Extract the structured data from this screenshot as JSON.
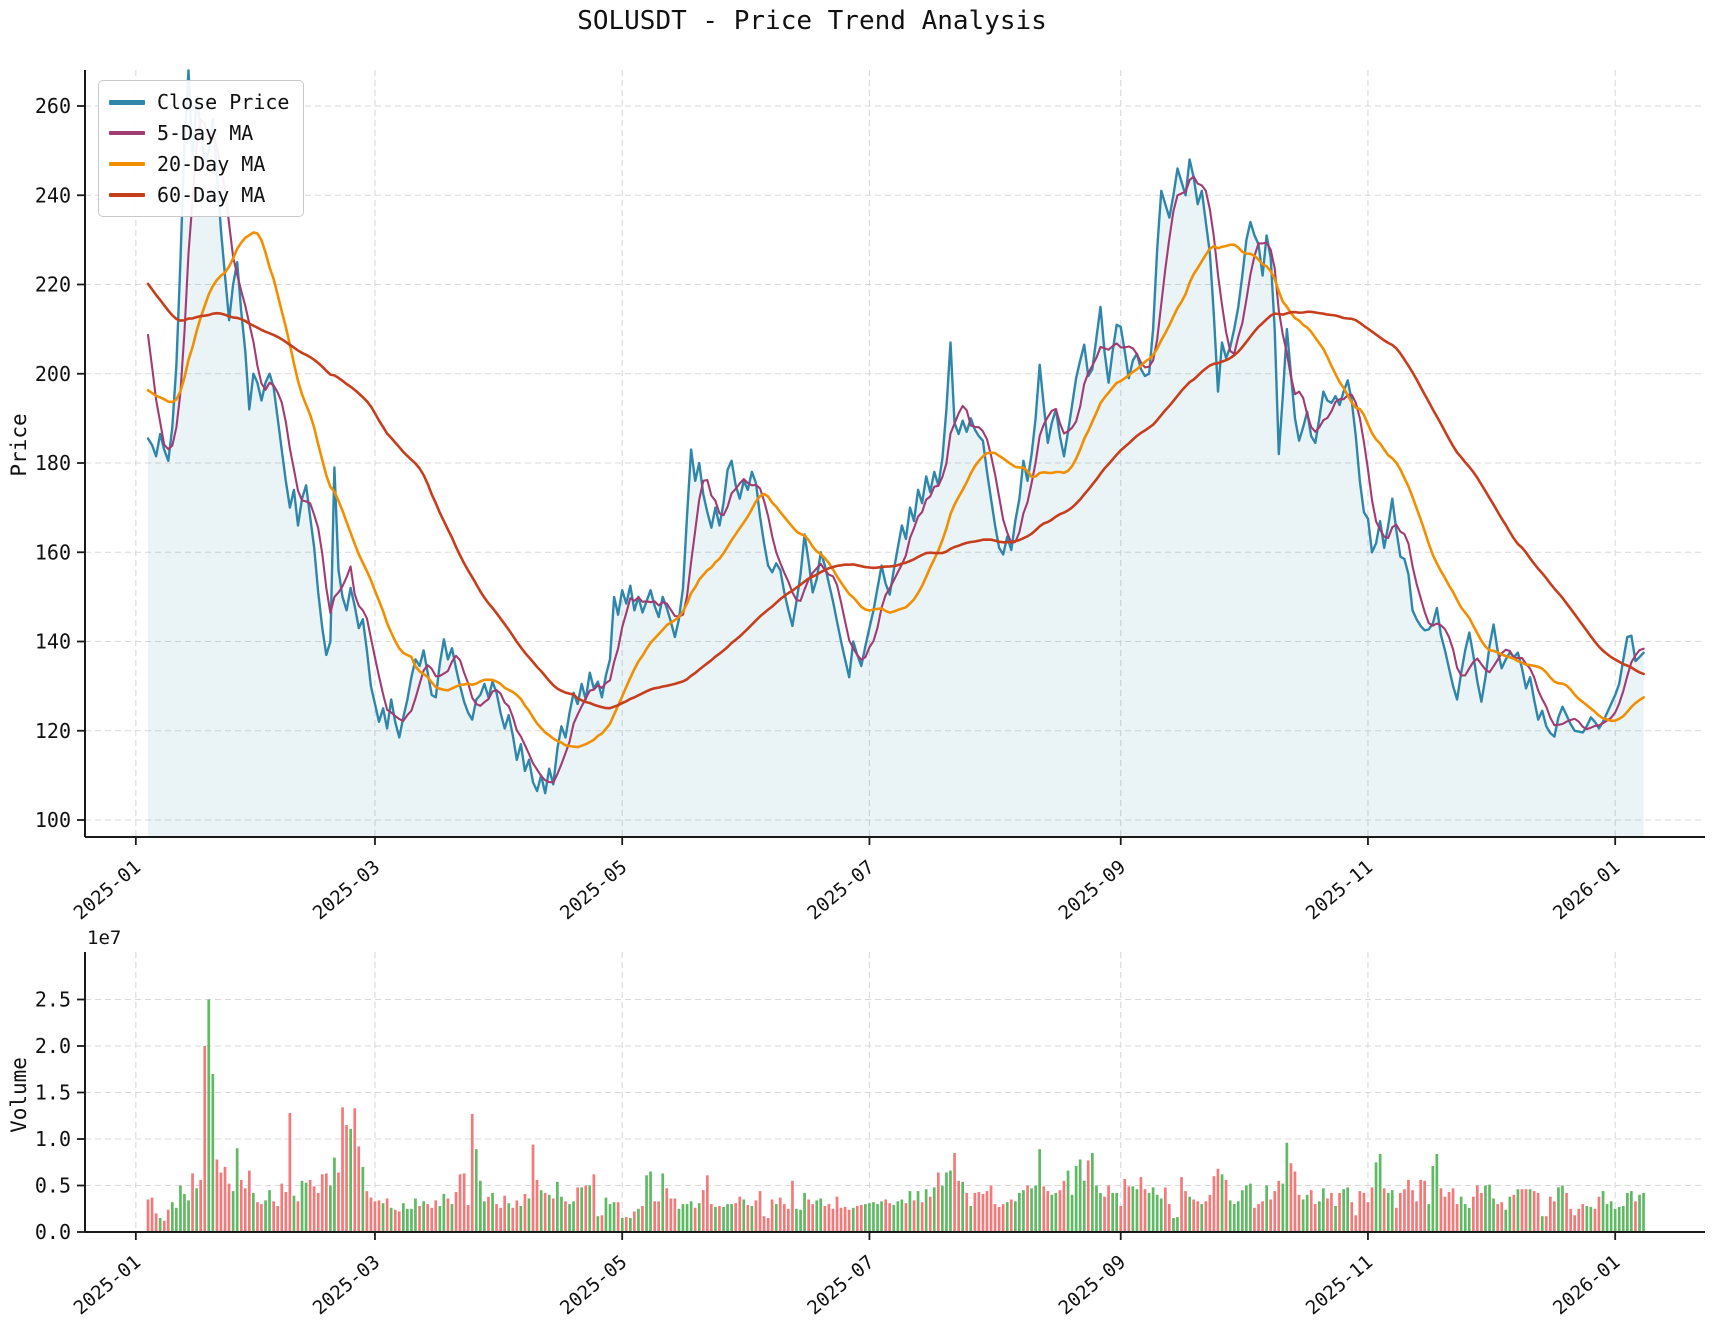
{
  "title": "SOLUSDT - Price Trend Analysis",
  "legend": {
    "items": [
      {
        "label": "Close Price",
        "color": "#2E86AB"
      },
      {
        "label": "5-Day MA",
        "color": "#A23B72"
      },
      {
        "label": "20-Day MA",
        "color": "#F18F01"
      },
      {
        "label": "60-Day MA",
        "color": "#C73E1D"
      }
    ]
  },
  "axes": {
    "price": {
      "label": "Price",
      "ticks": [
        100,
        120,
        140,
        160,
        180,
        200,
        220,
        240,
        260
      ]
    },
    "volume": {
      "label": "Volume",
      "ticks": [
        "0.0",
        "0.5",
        "1.0",
        "1.5",
        "2.0",
        "2.5"
      ],
      "offset_label": "1e7"
    },
    "x": {
      "tick_labels": [
        "2025-01",
        "2025-03",
        "2025-05",
        "2025-07",
        "2025-09",
        "2025-11",
        "2026-01"
      ],
      "tick_days": [
        -3,
        56,
        117,
        178,
        240,
        301,
        362
      ]
    }
  },
  "chart_data": [
    {
      "type": "line",
      "title": "SOLUSDT - Price Trend Analysis",
      "ylabel": "Price",
      "x_start_date": "2025-01-04",
      "x_days": 370,
      "ylim": [
        95,
        270
      ],
      "grid": true,
      "legend_position": "upper-left",
      "area_fill_under_close": true,
      "series": [
        {
          "name": "Close Price",
          "color": "#2E86AB",
          "values": [
            185.5,
            184,
            181.5,
            186.5,
            183,
            180.5,
            188,
            202,
            225,
            252,
            268,
            248,
            262,
            255,
            247,
            250,
            257,
            245,
            232,
            222,
            212,
            220,
            225,
            214,
            205,
            192,
            200,
            198,
            194,
            198,
            200,
            197,
            190,
            183,
            176,
            170,
            174,
            166,
            172,
            175,
            168,
            161,
            151,
            143,
            137,
            140,
            179,
            156,
            150,
            147,
            152,
            148,
            143,
            145,
            138,
            130,
            126,
            122,
            125,
            120.5,
            127,
            122,
            118.5,
            123,
            127,
            132,
            136,
            134.5,
            138,
            133,
            128,
            127.5,
            135,
            140.5,
            136,
            138.5,
            134,
            130,
            126.5,
            124,
            122.5,
            127,
            128,
            130.5,
            127.5,
            131,
            128.5,
            124,
            120.5,
            123.5,
            119,
            113.5,
            117,
            111,
            113.5,
            108.5,
            106.5,
            110,
            106,
            111.5,
            108,
            116,
            121,
            118.5,
            124,
            128.5,
            126,
            130.5,
            127,
            133,
            129.5,
            131,
            127.5,
            132.5,
            136,
            150,
            146,
            151.5,
            148.5,
            152.5,
            147,
            150,
            146.5,
            149,
            151.5,
            148,
            145.5,
            150,
            147.5,
            144.5,
            141,
            145,
            152,
            168,
            183,
            176,
            180,
            173,
            169,
            165.5,
            170,
            166,
            171,
            178.5,
            180.5,
            175,
            172,
            176,
            174,
            178,
            175.5,
            168,
            162,
            157,
            155.5,
            157.5,
            156,
            151,
            147,
            143.5,
            149,
            155,
            164,
            158,
            151,
            154,
            160,
            157,
            153,
            149,
            144.5,
            140,
            136,
            132,
            140,
            137,
            134.5,
            139,
            143,
            147,
            152,
            157,
            153,
            150.5,
            156,
            161,
            166,
            163,
            170,
            167,
            174,
            171,
            177,
            173.5,
            178,
            175,
            181,
            192,
            207,
            189,
            186.5,
            189.5,
            187,
            190,
            187.5,
            186,
            185,
            178,
            172,
            166,
            161,
            159.5,
            163.5,
            160.5,
            167,
            172,
            180.5,
            176,
            182,
            190,
            202,
            193,
            184.5,
            189,
            192,
            186,
            181.5,
            187,
            193,
            199,
            203,
            206.5,
            199.5,
            201,
            208,
            215,
            205,
            198,
            205,
            211,
            210.5,
            205,
            199,
            203,
            204.5,
            201,
            199.5,
            200,
            210,
            228,
            241,
            238,
            235,
            240,
            246,
            243,
            240,
            248,
            244,
            238,
            241,
            234,
            227,
            213,
            196,
            207,
            203.5,
            206,
            210,
            215,
            222,
            230,
            234,
            231,
            229,
            222,
            231,
            226,
            210,
            182,
            195,
            210,
            200,
            190,
            185,
            188,
            191.5,
            186,
            184.5,
            190,
            196,
            194,
            193.5,
            195,
            193,
            196,
            198.5,
            194,
            186,
            176,
            169,
            167.5,
            160,
            162,
            167,
            161,
            166,
            172,
            165,
            159,
            158.5,
            155,
            147,
            145,
            143.5,
            142.5,
            142.7,
            144,
            147.5,
            141.5,
            138,
            134,
            130,
            127,
            133,
            138,
            142,
            137,
            131,
            126.5,
            132,
            139,
            143.8,
            138,
            134,
            136,
            137.5,
            136.5,
            137.5,
            134,
            129.5,
            132,
            127,
            122.5,
            124.5,
            121,
            119.5,
            118.7,
            123,
            125.4,
            123.5,
            121.5,
            120,
            119.8,
            119.6,
            121,
            123,
            122,
            120.5,
            122,
            124,
            126,
            128,
            130.5,
            136,
            141,
            141.3,
            135.6,
            136.5,
            137.5
          ]
        },
        {
          "name": "5-Day MA",
          "color": "#A23B72",
          "window": 5,
          "derived_from_close": true
        },
        {
          "name": "20-Day MA",
          "color": "#F18F01",
          "window": 20,
          "derived_from_close": true
        },
        {
          "name": "60-Day MA",
          "color": "#C73E1D",
          "window": 60,
          "derived_from_close": true
        }
      ],
      "prior_close_anchors_for_ma_warmup": [
        [
          -61,
          260
        ],
        [
          -50,
          246
        ],
        [
          -40,
          235
        ],
        [
          -30,
          221
        ],
        [
          -22,
          204
        ],
        [
          -18,
          194
        ],
        [
          -14,
          190
        ],
        [
          -10,
          189
        ],
        [
          -7,
          193
        ],
        [
          -5,
          198
        ],
        [
          -4,
          220
        ],
        [
          -3,
          218
        ],
        [
          -2,
          212
        ],
        [
          -1,
          208
        ]
      ]
    },
    {
      "type": "bar",
      "ylabel": "Volume",
      "scale_label": "1e7",
      "unit": 1000000,
      "ylim_e7": [
        0,
        2.5
      ],
      "up_color": "#5FBA63",
      "down_color": "#F47A7A",
      "color_rule": "green if close >= previous close else red",
      "values_e6": [
        3.5,
        3.7,
        2.0,
        1.5,
        1.2,
        2.4,
        3.2,
        2.6,
        5.0,
        4.1,
        3.4,
        6.3,
        4.7,
        5.6,
        20.0,
        25.0,
        17.0,
        7.8,
        6.4,
        7.0,
        5.2,
        4.4,
        9.0,
        5.6,
        4.7,
        6.6,
        4.2,
        3.2,
        3.0,
        3.4,
        4.5,
        3.3,
        2.8,
        5.2,
        4.3,
        12.8,
        3.9,
        3.3,
        5.5,
        5.3,
        5.6,
        4.9,
        4.2,
        6.2,
        6.3,
        5.0,
        8.0,
        6.4,
        13.4,
        11.5,
        11.1,
        13.3,
        9.2,
        7.0,
        4.4,
        3.7,
        3.3,
        3.4,
        3.1,
        3.6,
        2.6,
        2.4,
        2.2,
        3.1,
        2.5,
        2.5,
        3.6,
        2.8,
        3.3,
        3.0,
        2.6,
        3.4,
        2.8,
        4.1,
        3.6,
        3.0,
        4.3,
        6.2,
        6.3,
        2.9,
        12.7,
        8.9,
        5.5,
        3.3,
        3.8,
        4.2,
        3.0,
        2.6,
        3.9,
        3.1,
        2.6,
        3.4,
        2.8,
        4.1,
        3.6,
        9.4,
        5.6,
        4.5,
        4.2,
        4.0,
        3.6,
        5.4,
        3.8,
        3.3,
        3.0,
        3.3,
        4.8,
        4.8,
        5.0,
        5.0,
        6.2,
        1.7,
        1.8,
        3.7,
        3.0,
        3.2,
        3.2,
        1.5,
        1.6,
        1.5,
        2.2,
        2.5,
        2.8,
        6.1,
        6.5,
        3.3,
        3.3,
        6.3,
        4.7,
        3.6,
        3.6,
        2.5,
        3.0,
        3.0,
        3.3,
        2.6,
        3.1,
        4.5,
        6.1,
        3.0,
        2.7,
        2.8,
        2.7,
        3.0,
        3.0,
        3.1,
        3.8,
        3.5,
        2.9,
        2.8,
        3.4,
        4.4,
        1.7,
        1.5,
        3.5,
        3.0,
        3.7,
        3.0,
        2.5,
        5.5,
        2.5,
        2.4,
        4.2,
        3.5,
        3.0,
        3.4,
        3.6,
        2.8,
        3.0,
        2.5,
        3.8,
        2.6,
        2.7,
        2.4,
        2.6,
        2.8,
        2.9,
        3.0,
        3.1,
        3.2,
        3.0,
        3.3,
        3.5,
        3.1,
        2.9,
        3.3,
        3.5,
        3.1,
        4.4,
        3.4,
        4.4,
        3.2,
        4.6,
        3.8,
        4.8,
        6.4,
        5.0,
        6.4,
        6.6,
        8.5,
        5.5,
        5.4,
        4.2,
        2.8,
        4.2,
        4.3,
        4.1,
        4.4,
        5.0,
        3.0,
        2.7,
        3.0,
        3.2,
        3.5,
        3.3,
        4.2,
        4.5,
        5.0,
        4.7,
        5.0,
        8.9,
        4.9,
        4.4,
        4.0,
        4.2,
        4.5,
        5.5,
        6.6,
        4.0,
        7.1,
        7.8,
        5.5,
        7.7,
        8.5,
        5.0,
        4.2,
        3.8,
        5.0,
        4.2,
        4.2,
        2.8,
        5.7,
        4.9,
        4.9,
        4.6,
        5.9,
        4.6,
        4.2,
        4.8,
        4.0,
        3.6,
        4.8,
        3.0,
        1.5,
        1.6,
        5.9,
        4.4,
        3.8,
        3.5,
        3.3,
        3.0,
        3.3,
        4.0,
        6.0,
        6.8,
        6.2,
        5.6,
        3.4,
        3.0,
        3.3,
        4.5,
        5.0,
        5.2,
        2.6,
        3.0,
        3.3,
        5.0,
        3.5,
        4.4,
        5.5,
        5.2,
        9.6,
        7.4,
        6.5,
        4.0,
        3.5,
        4.0,
        4.5,
        3.0,
        3.3,
        4.7,
        3.6,
        4.2,
        2.8,
        4.2,
        4.6,
        4.8,
        3.2,
        1.8,
        4.4,
        4.2,
        3.2,
        4.8,
        7.5,
        8.4,
        4.7,
        4.2,
        4.5,
        2.6,
        4.2,
        4.6,
        5.6,
        4.5,
        3.3,
        5.6,
        5.5,
        3.0,
        7.1,
        8.4,
        4.7,
        3.8,
        4.3,
        4.7,
        3.0,
        3.8,
        3.0,
        2.6,
        3.8,
        5.0,
        4.2,
        5.0,
        5.1,
        3.6,
        3.0,
        3.2,
        2.4,
        3.8,
        4.0,
        4.6,
        4.6,
        4.6,
        4.6,
        4.4,
        4.2,
        1.7,
        1.7,
        3.8,
        3.3,
        4.8,
        5.0,
        4.2,
        2.5,
        1.8,
        2.5,
        3.0,
        2.8,
        2.7,
        2.5,
        3.8,
        4.4,
        3.0,
        3.3,
        2.5,
        2.7,
        2.8,
        4.2,
        4.4,
        3.3,
        4.0,
        4.2
      ]
    }
  ],
  "style": {
    "grid_color": "#d9d9d9",
    "spine_color": "#1a1a1a",
    "area_fill": "rgba(46,134,171,0.10)",
    "text_color": "#111111"
  }
}
